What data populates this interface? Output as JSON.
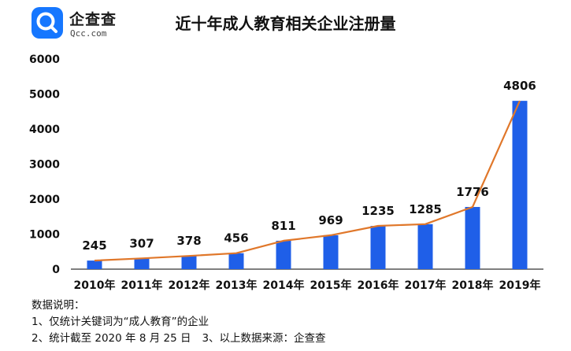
{
  "logo": {
    "name": "企查查",
    "subtitle": "Qcc.com",
    "icon": "magnifier-search-icon",
    "brand_color": "#1677ff"
  },
  "notes": {
    "heading": "数据说明：",
    "line1": "1、仅统计关键词为“成人教育”的企业",
    "line2a": "2、统计截至 2020 年 8 月 25 日",
    "line2b": "3、以上数据来源：企查查"
  },
  "chart_data": {
    "type": "bar",
    "title": "近十年成人教育相关企业注册量",
    "categories": [
      "2010年",
      "2011年",
      "2012年",
      "2013年",
      "2014年",
      "2015年",
      "2016年",
      "2017年",
      "2018年",
      "2019年"
    ],
    "values": [
      245,
      307,
      378,
      456,
      811,
      969,
      1235,
      1285,
      1776,
      4806
    ],
    "overlay_line": true,
    "ylim": [
      0,
      6000
    ],
    "yticks": [
      0,
      1000,
      2000,
      3000,
      4000,
      5000,
      6000
    ],
    "grid": false,
    "data_labels": true,
    "colors": {
      "bar": "#1f5fe8",
      "line": "#e0772a"
    }
  }
}
